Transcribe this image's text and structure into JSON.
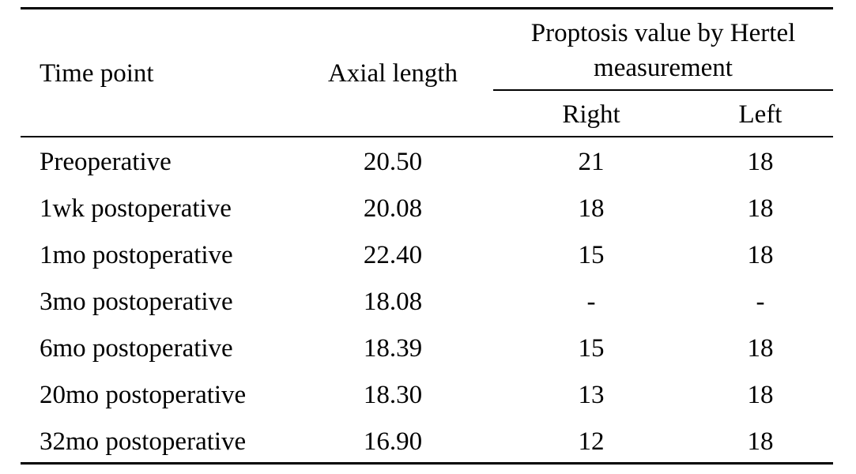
{
  "table": {
    "header": {
      "time_point": "Time point",
      "axial_length": "Axial length",
      "proptosis": "Proptosis value by Hertel measurement",
      "right": "Right",
      "left": "Left"
    },
    "rows": [
      {
        "time": "Preoperative",
        "axial": "20.50",
        "right": "21",
        "left": "18"
      },
      {
        "time": "1wk postoperative",
        "axial": "20.08",
        "right": "18",
        "left": "18"
      },
      {
        "time": "1mo postoperative",
        "axial": "22.40",
        "right": "15",
        "left": "18"
      },
      {
        "time": "3mo postoperative",
        "axial": "18.08",
        "right": "-",
        "left": "-"
      },
      {
        "time": "6mo postoperative",
        "axial": "18.39",
        "right": "15",
        "left": "18"
      },
      {
        "time": "20mo postoperative",
        "axial": "18.30",
        "right": "13",
        "left": "18"
      },
      {
        "time": "32mo postoperative",
        "axial": "16.90",
        "right": "12",
        "left": "18"
      }
    ]
  }
}
